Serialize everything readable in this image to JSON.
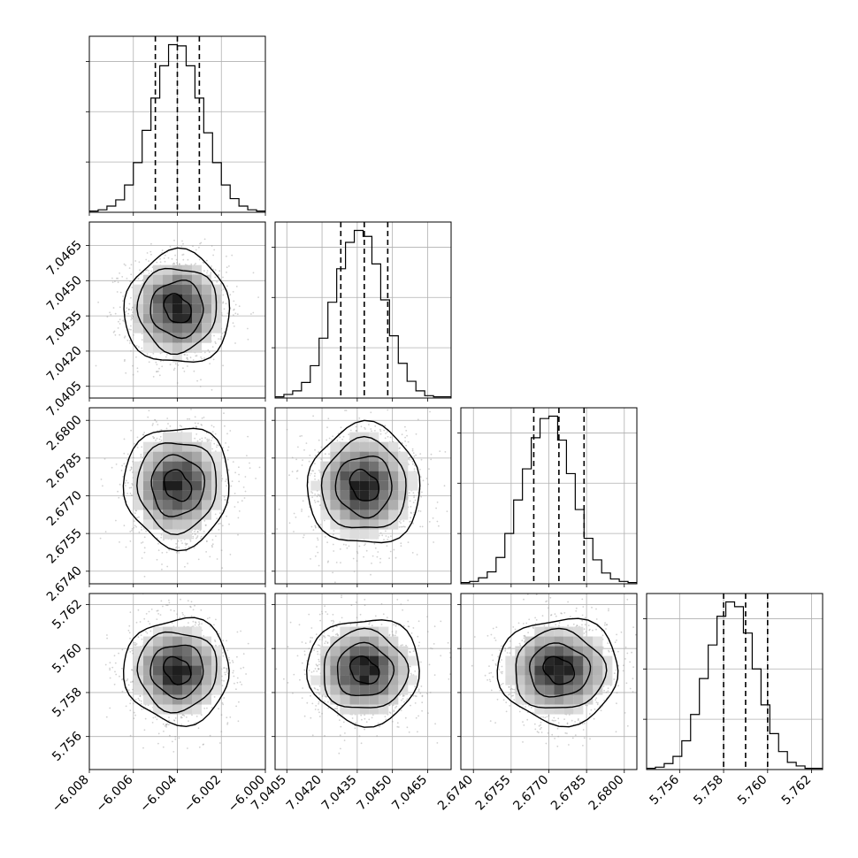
{
  "chart_data": {
    "type": "corner",
    "grid": true,
    "colors": {
      "hist": "#000000",
      "points": "#9a9a9a",
      "contour": "#000000",
      "grid": "#b0b0b0"
    },
    "params": [
      {
        "range": [
          -6.008,
          -6.0
        ],
        "ticks": [
          "−6.008",
          "−6.006",
          "−6.004",
          "−6.002",
          "−6.000"
        ],
        "tick_values": [
          -6.008,
          -6.006,
          -6.004,
          -6.002,
          -6.0
        ],
        "mean": -6.004,
        "sd": 0.001,
        "quantiles": [
          -6.005,
          -6.004,
          -6.003
        ],
        "hist_counts": [
          1,
          2,
          5,
          10,
          22,
          40,
          66,
          92,
          118,
          135,
          134,
          118,
          92,
          64,
          40,
          22,
          11,
          5,
          2,
          1
        ]
      },
      {
        "range": [
          7.04,
          7.0475
        ],
        "ticks": [
          "7.0405",
          "7.0420",
          "7.0435",
          "7.0450",
          "7.0465"
        ],
        "tick_values": [
          7.0405,
          7.042,
          7.0435,
          7.045,
          7.0465
        ],
        "mean": 7.0438,
        "sd": 0.001,
        "quantiles": [
          7.0428,
          7.0438,
          7.0448
        ],
        "hist_counts": [
          1,
          3,
          6,
          13,
          27,
          50,
          80,
          108,
          130,
          140,
          135,
          112,
          82,
          52,
          29,
          14,
          6,
          2,
          1,
          1
        ]
      },
      {
        "range": [
          2.6735,
          2.6805
        ],
        "ticks": [
          "2.6740",
          "2.6755",
          "2.6770",
          "2.6785",
          "2.6800"
        ],
        "tick_values": [
          2.674,
          2.6755,
          2.677,
          2.6785,
          2.68
        ],
        "mean": 2.6774,
        "sd": 0.001,
        "quantiles": [
          2.6764,
          2.6774,
          2.6784
        ],
        "hist_counts": [
          1,
          2,
          5,
          10,
          22,
          42,
          70,
          96,
          122,
          138,
          140,
          120,
          92,
          62,
          38,
          20,
          9,
          4,
          2,
          1
        ]
      },
      {
        "range": [
          5.7545,
          5.7625
        ],
        "ticks": [
          "5.756",
          "5.758",
          "5.760",
          "5.762"
        ],
        "tick_values": [
          5.756,
          5.758,
          5.76,
          5.762
        ],
        "mean": 5.759,
        "sd": 0.001,
        "quantiles": [
          5.758,
          5.759,
          5.76
        ],
        "hist_counts": [
          1,
          2,
          5,
          11,
          24,
          46,
          76,
          104,
          128,
          140,
          136,
          114,
          84,
          54,
          30,
          15,
          6,
          3,
          1,
          1
        ]
      }
    ]
  }
}
